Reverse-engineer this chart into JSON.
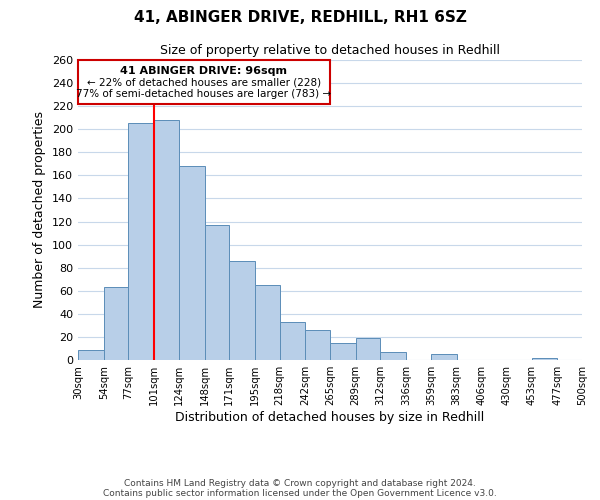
{
  "title": "41, ABINGER DRIVE, REDHILL, RH1 6SZ",
  "subtitle": "Size of property relative to detached houses in Redhill",
  "xlabel": "Distribution of detached houses by size in Redhill",
  "ylabel": "Number of detached properties",
  "bar_edges": [
    30,
    54,
    77,
    101,
    124,
    148,
    171,
    195,
    218,
    242,
    265,
    289,
    312,
    336,
    359,
    383,
    406,
    430,
    453,
    477,
    500
  ],
  "bar_heights": [
    9,
    63,
    205,
    208,
    168,
    117,
    86,
    65,
    33,
    26,
    15,
    19,
    7,
    0,
    5,
    0,
    0,
    0,
    2,
    0
  ],
  "tick_labels": [
    "30sqm",
    "54sqm",
    "77sqm",
    "101sqm",
    "124sqm",
    "148sqm",
    "171sqm",
    "195sqm",
    "218sqm",
    "242sqm",
    "265sqm",
    "289sqm",
    "312sqm",
    "336sqm",
    "359sqm",
    "383sqm",
    "406sqm",
    "430sqm",
    "453sqm",
    "477sqm",
    "500sqm"
  ],
  "bar_color": "#b8cfe8",
  "bar_edge_color": "#5b8db8",
  "property_line_x": 101,
  "ylim": [
    0,
    260
  ],
  "yticks": [
    0,
    20,
    40,
    60,
    80,
    100,
    120,
    140,
    160,
    180,
    200,
    220,
    240,
    260
  ],
  "annotation_title": "41 ABINGER DRIVE: 96sqm",
  "annotation_line1": "← 22% of detached houses are smaller (228)",
  "annotation_line2": "77% of semi-detached houses are larger (783) →",
  "footer1": "Contains HM Land Registry data © Crown copyright and database right 2024.",
  "footer2": "Contains public sector information licensed under the Open Government Licence v3.0.",
  "background_color": "#ffffff",
  "grid_color": "#c8d8ea"
}
